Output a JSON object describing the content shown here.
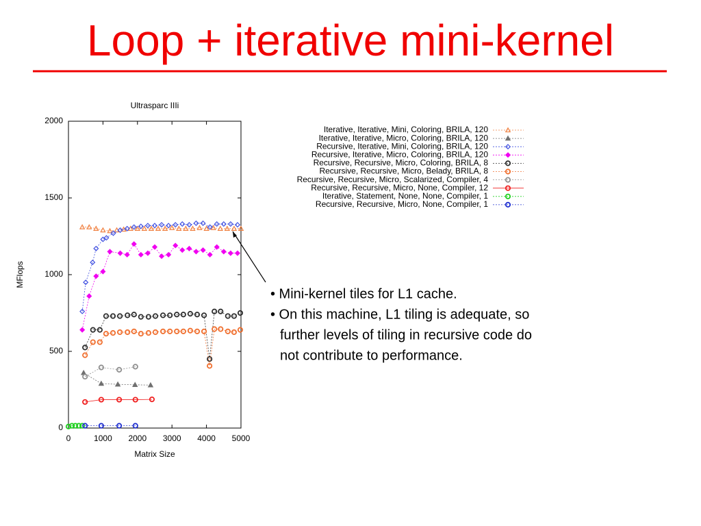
{
  "slide": {
    "title": "Loop + iterative mini-kernel",
    "bullets": [
      [
        "• Mini-kernel tiles for L1 cache."
      ],
      [
        "• On this machine, L1 tiling is adequate, so",
        "further levels of tiling in recursive code do",
        "not contribute to performance."
      ]
    ]
  },
  "chart_data": {
    "type": "line",
    "title": "Ultrasparc IIIi",
    "x_label": "Matrix Size",
    "y_label": "MFlops",
    "xlim": [
      0,
      5000
    ],
    "xticks": [
      0,
      1000,
      2000,
      3000,
      4000,
      5000
    ],
    "ylim": [
      0,
      2000
    ],
    "yticks": [
      0,
      500,
      1000,
      1500,
      2000
    ],
    "grid": false,
    "legend": "top-right",
    "series": [
      {
        "name": "Iterative, Iterative, Mini, Coloring, BRILA, 120",
        "color": "#f08040",
        "marker": "triangle",
        "line_style": "dashed",
        "x": [
          400,
          600,
          800,
          1000,
          1200,
          1400,
          1600,
          1800,
          2000,
          2200,
          2400,
          2600,
          2800,
          3000,
          3200,
          3400,
          3600,
          3800,
          4000,
          4200,
          4400,
          4600,
          4800,
          5000
        ],
        "values": [
          1310,
          1310,
          1300,
          1290,
          1285,
          1290,
          1295,
          1300,
          1300,
          1300,
          1300,
          1300,
          1300,
          1305,
          1300,
          1300,
          1300,
          1305,
          1300,
          1305,
          1300,
          1300,
          1300,
          1300
        ]
      },
      {
        "name": "Iterative, Iterative, Micro, Coloring, BRILA, 120",
        "color": "#707070",
        "marker": "filled-triangle",
        "line_style": "dashed",
        "x": [
          440,
          950,
          1430,
          1930,
          2380
        ],
        "values": [
          360,
          290,
          285,
          282,
          280
        ]
      },
      {
        "name": "Recursive, Iterative, Mini, Coloring, BRILA, 120",
        "color": "#4050e0",
        "marker": "diamond",
        "line_style": "dashed",
        "x": [
          400,
          500,
          700,
          800,
          1000,
          1100,
          1300,
          1500,
          1700,
          1900,
          2100,
          2300,
          2500,
          2700,
          2900,
          3100,
          3300,
          3500,
          3700,
          3900,
          4100,
          4300,
          4500,
          4700,
          4900
        ],
        "values": [
          760,
          950,
          1080,
          1170,
          1230,
          1240,
          1270,
          1290,
          1300,
          1310,
          1315,
          1320,
          1320,
          1325,
          1320,
          1325,
          1330,
          1325,
          1335,
          1335,
          1310,
          1330,
          1330,
          1330,
          1325
        ]
      },
      {
        "name": "Recursive, Iterative, Micro, Coloring, BRILA, 120",
        "color": "#f000f0",
        "marker": "filled-diamond",
        "line_style": "dashed",
        "x": [
          400,
          600,
          800,
          1000,
          1200,
          1500,
          1700,
          1900,
          2100,
          2300,
          2500,
          2700,
          2900,
          3100,
          3300,
          3500,
          3700,
          3900,
          4100,
          4300,
          4500,
          4700,
          4900
        ],
        "values": [
          640,
          860,
          990,
          1020,
          1150,
          1140,
          1130,
          1200,
          1130,
          1140,
          1180,
          1120,
          1130,
          1190,
          1160,
          1170,
          1150,
          1160,
          1130,
          1180,
          1150,
          1140,
          1140
        ]
      },
      {
        "name": "Recursive, Recursive, Micro, Coloring, BRILA, 8",
        "color": "#303030",
        "marker": "circle",
        "line_style": "dashed",
        "x": [
          480,
          710,
          910,
          1090,
          1290,
          1490,
          1710,
          1900,
          2100,
          2320,
          2520,
          2740,
          2940,
          3140,
          3330,
          3530,
          3730,
          3930,
          4090,
          4230,
          4410,
          4620,
          4800,
          4980
        ],
        "values": [
          525,
          640,
          640,
          730,
          730,
          730,
          735,
          740,
          725,
          725,
          730,
          735,
          735,
          740,
          740,
          745,
          740,
          735,
          450,
          760,
          760,
          730,
          730,
          750
        ]
      },
      {
        "name": "Recursive, Recursive, Micro, Belady, BRILA, 8",
        "color": "#f07030",
        "marker": "circle",
        "line_style": "dashed",
        "x": [
          480,
          710,
          910,
          1090,
          1290,
          1490,
          1710,
          1900,
          2100,
          2320,
          2520,
          2740,
          2940,
          3140,
          3330,
          3530,
          3730,
          3930,
          4090,
          4230,
          4410,
          4620,
          4800,
          4980
        ],
        "values": [
          475,
          560,
          560,
          615,
          620,
          625,
          625,
          630,
          615,
          620,
          625,
          630,
          630,
          630,
          630,
          635,
          630,
          630,
          405,
          645,
          645,
          630,
          625,
          640
        ]
      },
      {
        "name": "Recursive, Recursive, Micro, Scalarized, Compiler, 4",
        "color": "#909090",
        "marker": "circle",
        "line_style": "dashed",
        "x": [
          480,
          950,
          1470,
          1940
        ],
        "values": [
          335,
          395,
          380,
          400
        ]
      },
      {
        "name": "Recursive, Recursive, Micro, None, Compiler, 12",
        "color": "#f02020",
        "marker": "circle",
        "line_style": "solid",
        "x": [
          480,
          950,
          1470,
          1940,
          2420
        ],
        "values": [
          170,
          185,
          185,
          185,
          187
        ]
      },
      {
        "name": "Iterative, Statement, None, None, Compiler, 1",
        "color": "#20d020",
        "marker": "circle",
        "line_style": "dashed",
        "x": [
          0,
          100,
          200,
          300,
          400
        ],
        "values": [
          10,
          15,
          15,
          15,
          15
        ]
      },
      {
        "name": "Recursive, Recursive, Micro, None, Compiler, 1",
        "color": "#2030d0",
        "marker": "circle",
        "line_style": "dashed",
        "x": [
          480,
          950,
          1470,
          1940
        ],
        "values": [
          15,
          15,
          15,
          15
        ]
      }
    ]
  }
}
